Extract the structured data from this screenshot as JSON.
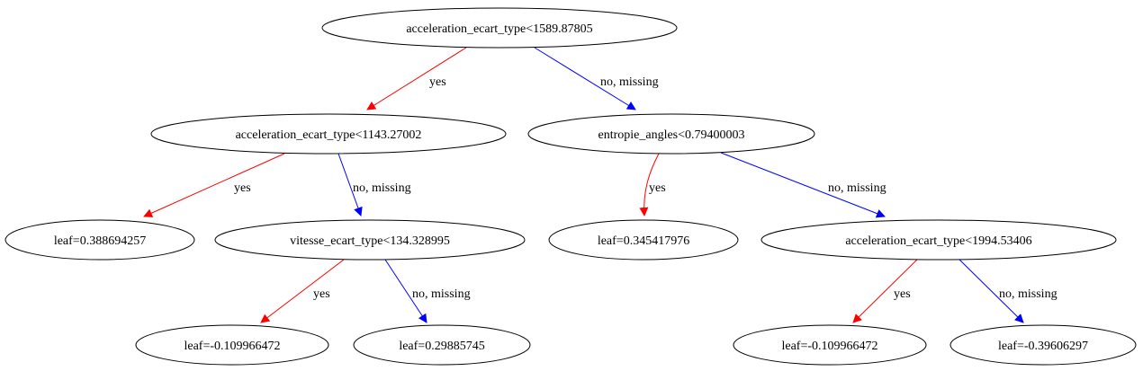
{
  "colors": {
    "yes_edge": "#ff0000",
    "no_edge": "#0000ff",
    "node_stroke": "#000000"
  },
  "nodes": {
    "n0": "acceleration_ecart_type<1589.87805",
    "n1": "acceleration_ecart_type<1143.27002",
    "n2": "entropie_angles<0.79400003",
    "n3": "leaf=0.388694257",
    "n4": "vitesse_ecart_type<134.328995",
    "n5": "leaf=0.345417976",
    "n6": "acceleration_ecart_type<1994.53406",
    "n7": "leaf=-0.109966472",
    "n8": "leaf=0.29885745",
    "n9": "leaf=-0.109966472",
    "n10": "leaf=-0.39606297"
  },
  "edges": [
    {
      "from": "n0",
      "to": "n1",
      "label": "yes",
      "kind": "yes"
    },
    {
      "from": "n0",
      "to": "n2",
      "label": "no, missing",
      "kind": "no"
    },
    {
      "from": "n1",
      "to": "n3",
      "label": "yes",
      "kind": "yes"
    },
    {
      "from": "n1",
      "to": "n4",
      "label": "no, missing",
      "kind": "no"
    },
    {
      "from": "n2",
      "to": "n5",
      "label": "yes",
      "kind": "yes"
    },
    {
      "from": "n2",
      "to": "n6",
      "label": "no, missing",
      "kind": "no"
    },
    {
      "from": "n4",
      "to": "n7",
      "label": "yes",
      "kind": "yes"
    },
    {
      "from": "n4",
      "to": "n8",
      "label": "no, missing",
      "kind": "no"
    },
    {
      "from": "n6",
      "to": "n9",
      "label": "yes",
      "kind": "yes"
    },
    {
      "from": "n6",
      "to": "n10",
      "label": "no, missing",
      "kind": "no"
    }
  ]
}
